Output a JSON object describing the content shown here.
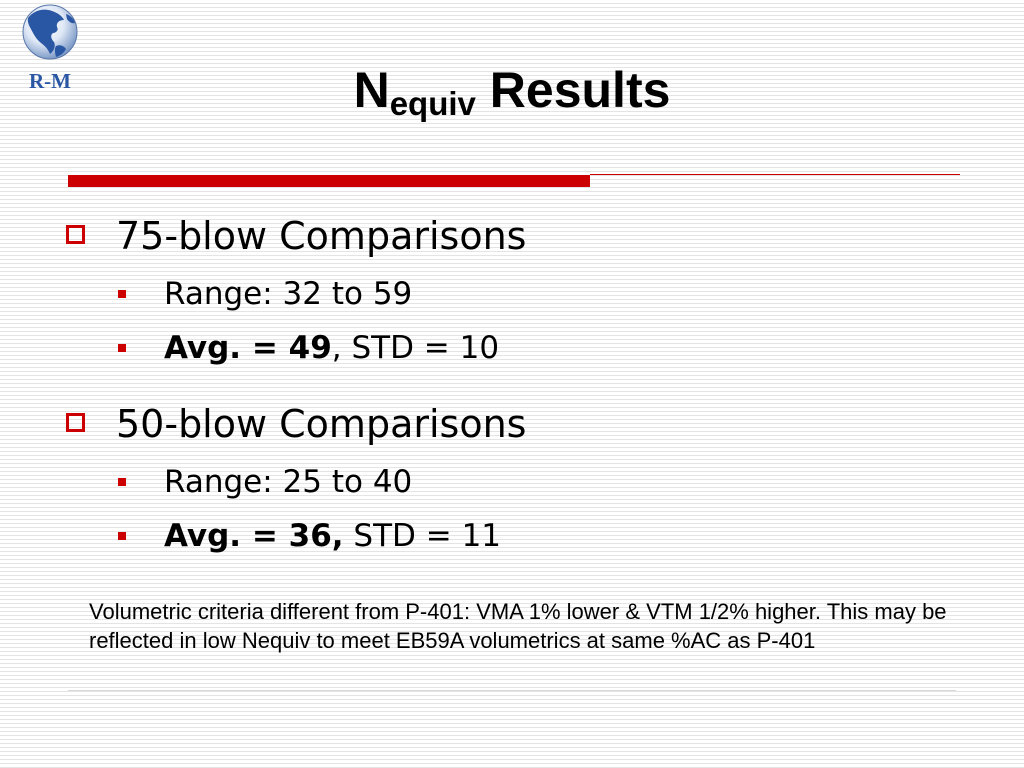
{
  "logo": {
    "label": "R-M",
    "icon": "globe-icon"
  },
  "title": {
    "main": "N",
    "subscript": "equiv",
    "rest": " Results"
  },
  "bullets": [
    {
      "heading": "75-blow Comparisons",
      "items": [
        {
          "text": "Range: 32 to 59"
        },
        {
          "bold": "Avg. = 49",
          "rest": ", STD = 10"
        }
      ]
    },
    {
      "heading": "50-blow Comparisons",
      "items": [
        {
          "text": "Range: 25 to 40"
        },
        {
          "bold": "Avg. = 36,",
          "rest": " STD = 11"
        }
      ]
    }
  ],
  "note": "Volumetric criteria different from P-401: VMA 1% lower & VTM 1/2% higher. This may be reflected in low Nequiv to meet EB59A volumetrics at same %AC as P-401",
  "colors": {
    "accent": "#cc0000",
    "text": "#000000",
    "logo_blue": "#2a57a4"
  }
}
